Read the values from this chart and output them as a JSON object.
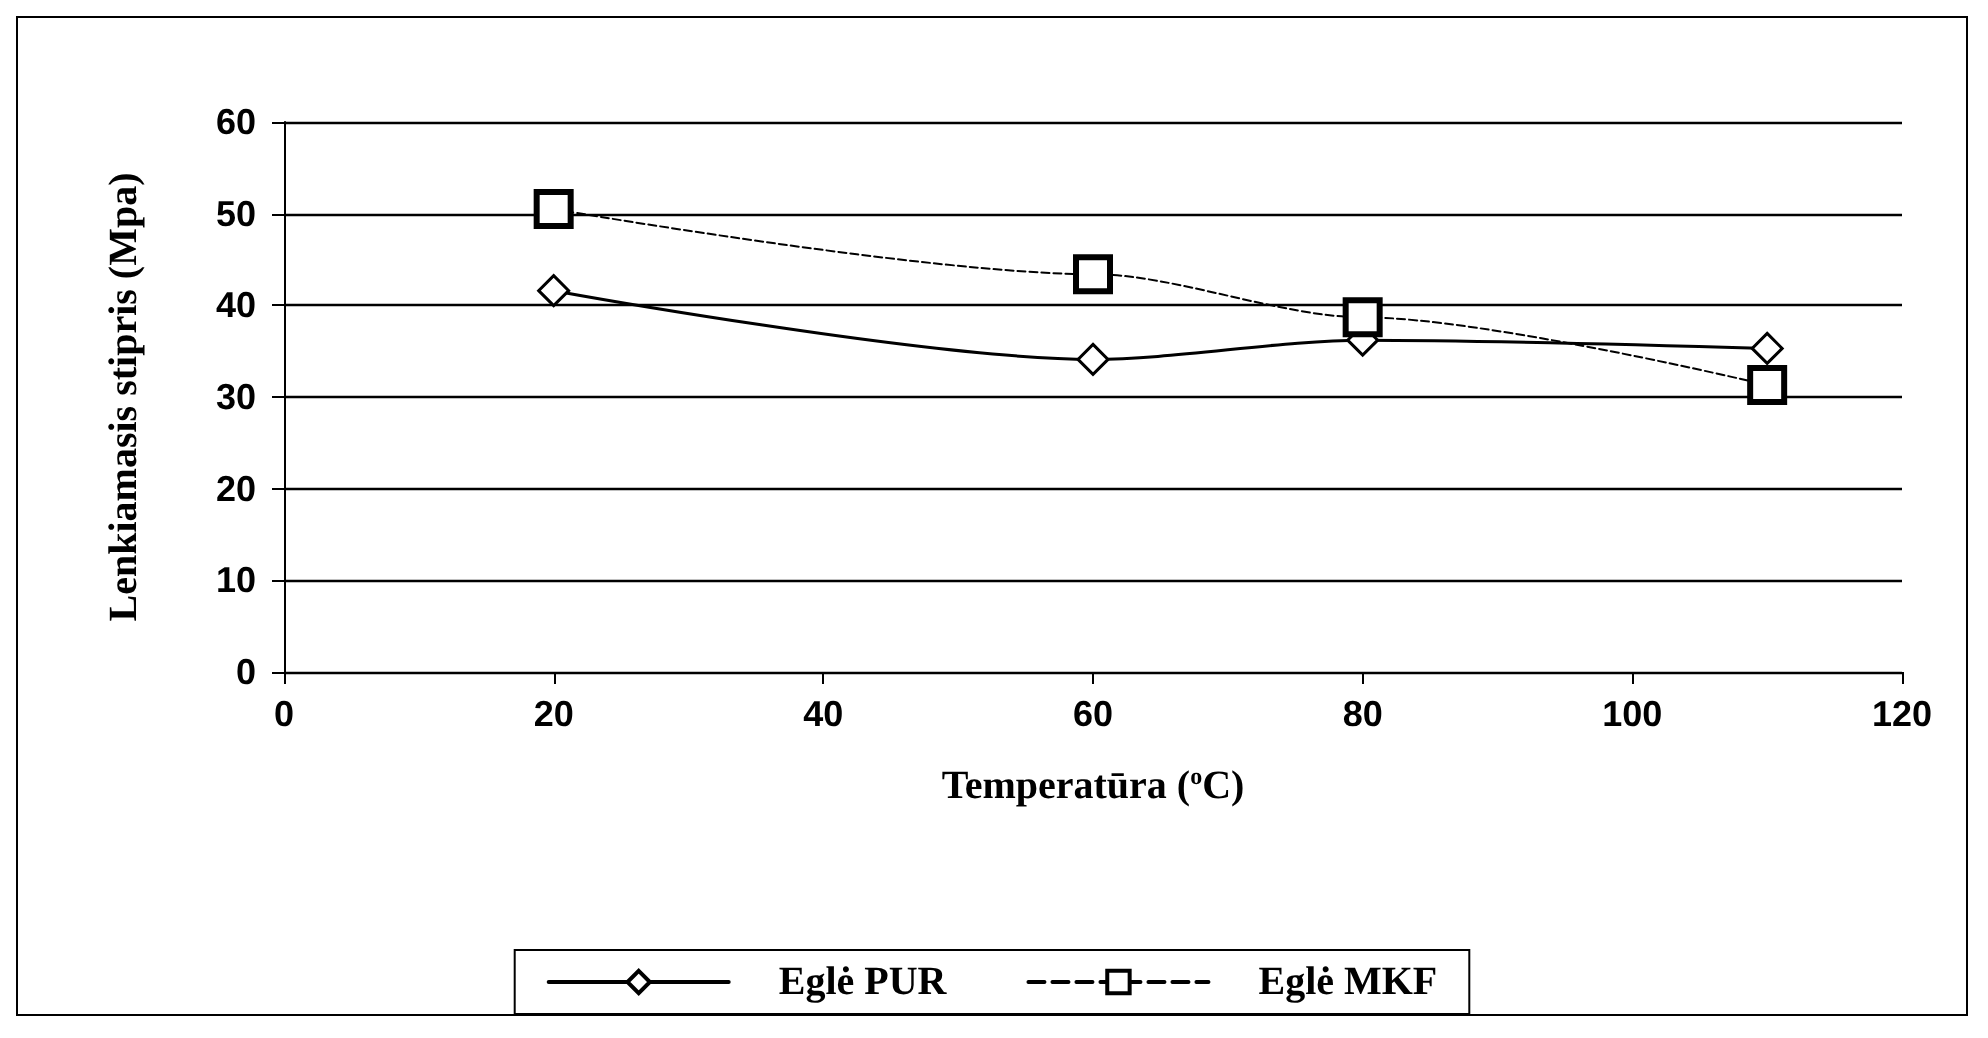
{
  "chart_data": {
    "type": "line",
    "xlabel": "Temperatūra ($^{o}$C)",
    "ylabel": "Lenkiamasis stipris (Mpa)",
    "x": [
      20,
      60,
      80,
      110
    ],
    "series": [
      {
        "name": "Eglė PUR",
        "color": "#000000",
        "values": [
          41.6,
          34.1,
          36.2,
          35.3
        ],
        "marker": "diamond",
        "line_style": "solid"
      },
      {
        "name": "Eglė MKF",
        "color": "#000000",
        "values": [
          50.5,
          43.4,
          38.7,
          31.3
        ],
        "marker": "square",
        "line_style": "dashed"
      }
    ],
    "xlim": [
      0,
      120
    ],
    "xticks": [
      0,
      20,
      40,
      60,
      80,
      100,
      120
    ],
    "ylim": [
      0,
      60
    ],
    "yticks": [
      0,
      10,
      20,
      30,
      40,
      50,
      60
    ],
    "grid": "y",
    "legend": "bottom"
  }
}
